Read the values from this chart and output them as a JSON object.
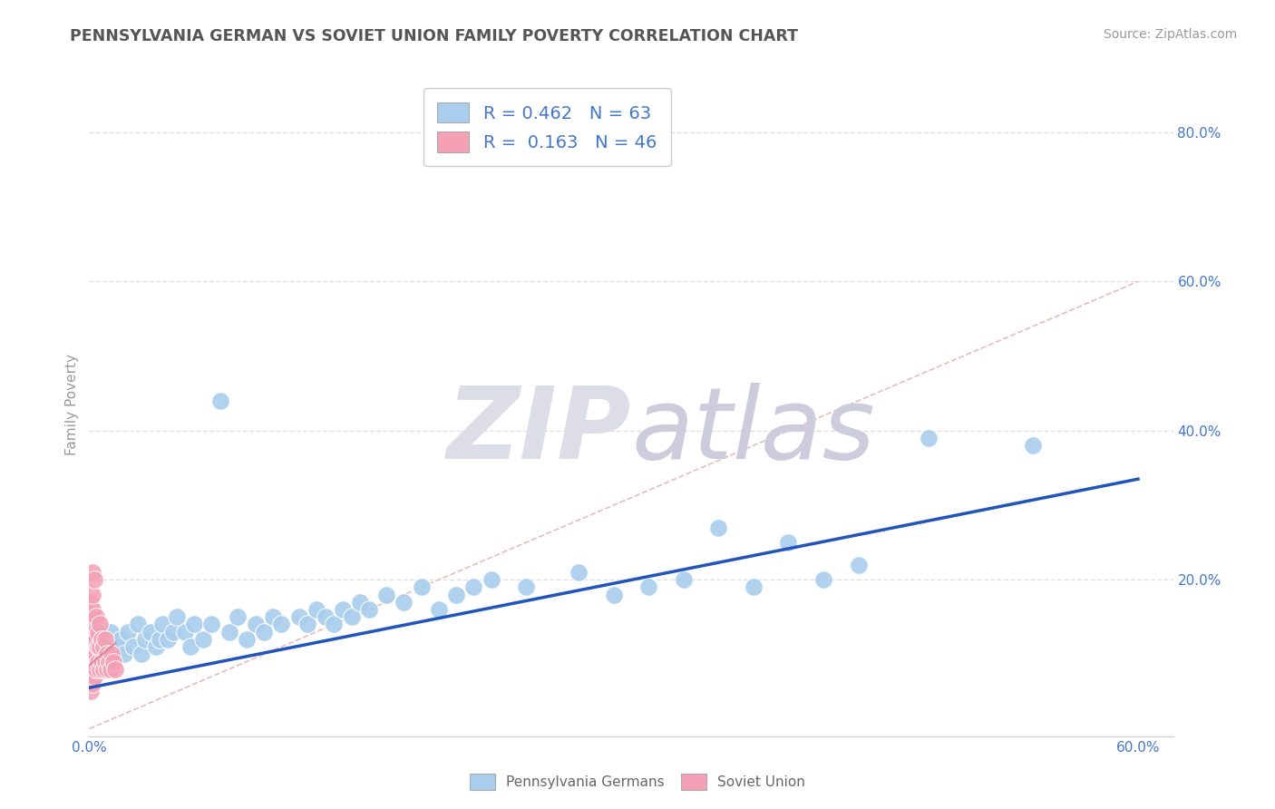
{
  "title": "PENNSYLVANIA GERMAN VS SOVIET UNION FAMILY POVERTY CORRELATION CHART",
  "source_text": "Source: ZipAtlas.com",
  "ylabel": "Family Poverty",
  "xlim": [
    0.0,
    0.62
  ],
  "ylim": [
    -0.01,
    0.88
  ],
  "xticks": [
    0.0,
    0.1,
    0.2,
    0.3,
    0.4,
    0.5,
    0.6
  ],
  "xticklabels": [
    "0.0%",
    "",
    "",
    "",
    "",
    "",
    "60.0%"
  ],
  "ytick_positions": [
    0.2,
    0.4,
    0.6,
    0.8
  ],
  "yticklabels": [
    "20.0%",
    "40.0%",
    "60.0%",
    "80.0%"
  ],
  "blue_color": "#A8CDED",
  "pink_color": "#F4A0B5",
  "blue_line_color": "#2255BB",
  "pink_line_color": "#DD8899",
  "diag_line_color": "#E8BBBB",
  "title_color": "#555555",
  "axis_label_color": "#999999",
  "tick_label_color": "#4477CC",
  "watermark_zip_color": "#DDDDE8",
  "watermark_atlas_color": "#CCCCDD",
  "legend_R_blue": "0.462",
  "legend_N_blue": "63",
  "legend_R_pink": "0.163",
  "legend_N_pink": "46",
  "legend_label_blue": "Pennsylvania Germans",
  "legend_label_pink": "Soviet Union",
  "blue_scatter_x": [
    0.002,
    0.004,
    0.006,
    0.008,
    0.01,
    0.012,
    0.014,
    0.016,
    0.018,
    0.02,
    0.022,
    0.025,
    0.028,
    0.03,
    0.032,
    0.035,
    0.038,
    0.04,
    0.042,
    0.045,
    0.048,
    0.05,
    0.055,
    0.058,
    0.06,
    0.065,
    0.07,
    0.075,
    0.08,
    0.085,
    0.09,
    0.095,
    0.1,
    0.105,
    0.11,
    0.12,
    0.125,
    0.13,
    0.135,
    0.14,
    0.145,
    0.15,
    0.155,
    0.16,
    0.17,
    0.18,
    0.19,
    0.2,
    0.21,
    0.22,
    0.23,
    0.25,
    0.28,
    0.3,
    0.32,
    0.34,
    0.36,
    0.38,
    0.4,
    0.42,
    0.44,
    0.48,
    0.54
  ],
  "blue_scatter_y": [
    0.1,
    0.12,
    0.08,
    0.11,
    0.09,
    0.13,
    0.1,
    0.11,
    0.12,
    0.1,
    0.13,
    0.11,
    0.14,
    0.1,
    0.12,
    0.13,
    0.11,
    0.12,
    0.14,
    0.12,
    0.13,
    0.15,
    0.13,
    0.11,
    0.14,
    0.12,
    0.14,
    0.44,
    0.13,
    0.15,
    0.12,
    0.14,
    0.13,
    0.15,
    0.14,
    0.15,
    0.14,
    0.16,
    0.15,
    0.14,
    0.16,
    0.15,
    0.17,
    0.16,
    0.18,
    0.17,
    0.19,
    0.16,
    0.18,
    0.19,
    0.2,
    0.19,
    0.21,
    0.18,
    0.19,
    0.2,
    0.27,
    0.19,
    0.25,
    0.2,
    0.22,
    0.39,
    0.38
  ],
  "pink_scatter_x": [
    0.001,
    0.001,
    0.001,
    0.001,
    0.001,
    0.001,
    0.001,
    0.001,
    0.001,
    0.001,
    0.002,
    0.002,
    0.002,
    0.002,
    0.002,
    0.002,
    0.002,
    0.002,
    0.003,
    0.003,
    0.003,
    0.003,
    0.003,
    0.004,
    0.004,
    0.004,
    0.004,
    0.005,
    0.005,
    0.005,
    0.006,
    0.006,
    0.006,
    0.007,
    0.007,
    0.008,
    0.008,
    0.009,
    0.009,
    0.01,
    0.01,
    0.011,
    0.012,
    0.013,
    0.014,
    0.015
  ],
  "pink_scatter_y": [
    0.05,
    0.07,
    0.08,
    0.09,
    0.1,
    0.11,
    0.12,
    0.14,
    0.15,
    0.17,
    0.06,
    0.08,
    0.1,
    0.12,
    0.14,
    0.16,
    0.18,
    0.21,
    0.07,
    0.09,
    0.11,
    0.13,
    0.2,
    0.08,
    0.1,
    0.12,
    0.15,
    0.09,
    0.11,
    0.13,
    0.08,
    0.11,
    0.14,
    0.09,
    0.12,
    0.08,
    0.11,
    0.09,
    0.12,
    0.08,
    0.1,
    0.09,
    0.08,
    0.1,
    0.09,
    0.08
  ],
  "blue_line_x": [
    0.0,
    0.6
  ],
  "blue_line_y": [
    0.055,
    0.335
  ],
  "pink_line_x": [
    0.0,
    0.015
  ],
  "pink_line_y": [
    0.085,
    0.115
  ],
  "background_color": "#FFFFFF",
  "grid_color": "#E0E0E0",
  "grid_style": "--"
}
